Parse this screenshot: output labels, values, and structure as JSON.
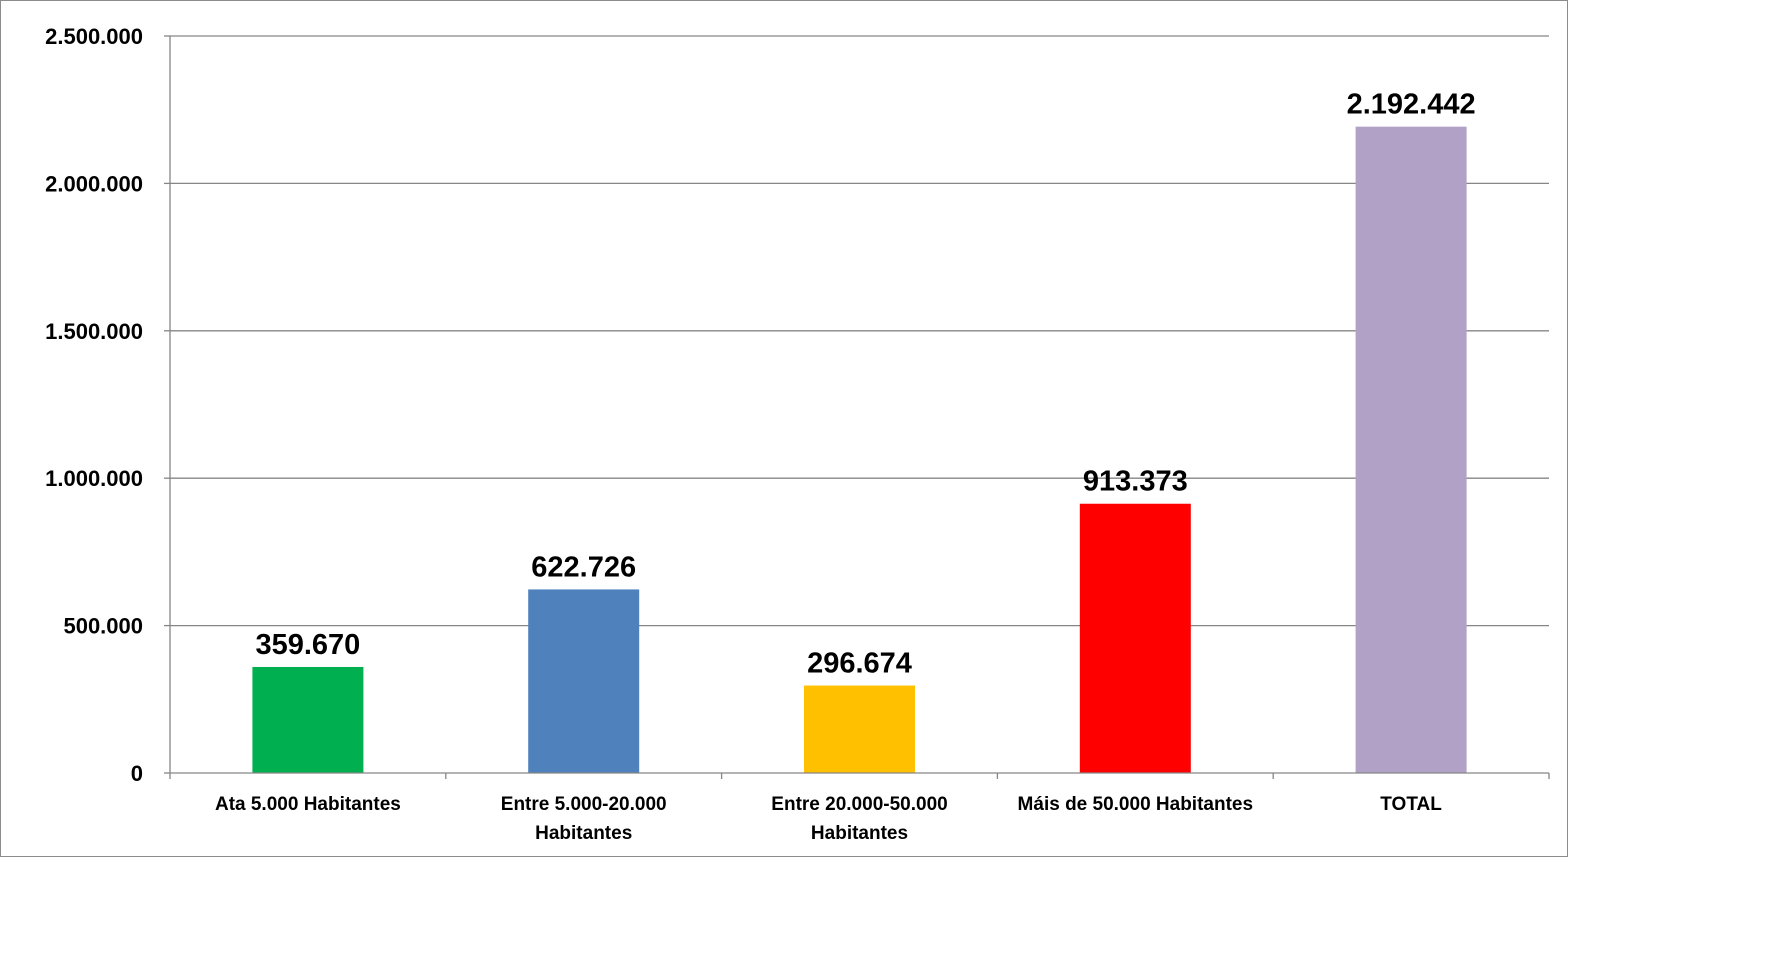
{
  "chart_data": {
    "type": "bar",
    "title": "",
    "xlabel": "",
    "ylabel": "",
    "ylim": [
      0,
      2500000
    ],
    "yticks": [
      0,
      500000,
      1000000,
      1500000,
      2000000,
      2500000
    ],
    "ytick_labels": [
      "0",
      "500.000",
      "1.000.000",
      "1.500.000",
      "2.000.000",
      "2.500.000"
    ],
    "grid": true,
    "legend": "none",
    "categories": [
      [
        "Ata 5.000 Habitantes"
      ],
      [
        "Entre 5.000-20.000",
        "Habitantes"
      ],
      [
        "Entre 20.000-50.000",
        "Habitantes"
      ],
      [
        "Máis de 50.000 Habitantes"
      ],
      [
        "TOTAL"
      ]
    ],
    "values": [
      359670,
      622726,
      296674,
      913373,
      2192442
    ],
    "value_labels": [
      "359.670",
      "622.726",
      "296.674",
      "913.373",
      "2.192.442"
    ],
    "colors": [
      "#00b050",
      "#4f81bd",
      "#ffc000",
      "#ff0000",
      "#b2a1c7"
    ]
  }
}
